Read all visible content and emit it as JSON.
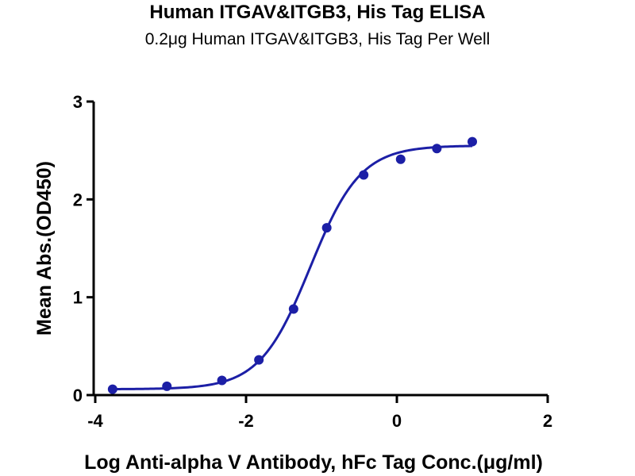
{
  "chart_data": {
    "type": "scatter",
    "title": "Human ITGAV&ITGB3, His Tag ELISA",
    "subtitle": "0.2μg Human ITGAV&ITGB3, His Tag Per Well",
    "xlabel": "Log Anti-alpha V Antibody, hFc Tag Conc.(μg/ml)",
    "ylabel": "Mean Abs.(OD450)",
    "xlim": [
      -4,
      2
    ],
    "ylim": [
      0,
      3
    ],
    "x_ticks": [
      -4,
      -2,
      0,
      2
    ],
    "y_ticks": [
      0,
      1,
      2,
      3
    ],
    "x_tick_labels": [
      "-4",
      "-2",
      "0",
      "2"
    ],
    "y_tick_labels": [
      "0",
      "1",
      "2",
      "3"
    ],
    "grid": false,
    "legend": "none",
    "series": [
      {
        "marker": "circle",
        "color": "#1c1fa6",
        "x": [
          -3.77,
          -3.05,
          -2.32,
          -1.83,
          -1.37,
          -0.93,
          -0.44,
          0.05,
          0.53,
          1.0
        ],
        "y": [
          0.06,
          0.09,
          0.15,
          0.36,
          0.88,
          1.71,
          2.25,
          2.41,
          2.52,
          2.59
        ]
      }
    ],
    "fit_curve": {
      "type": "4PL",
      "color": "#1c1fa6",
      "x_range": [
        -3.77,
        1.0
      ],
      "bottom": 0.06,
      "top": 2.55,
      "log_ec50": -1.15,
      "hill_slope": 1.3
    }
  }
}
